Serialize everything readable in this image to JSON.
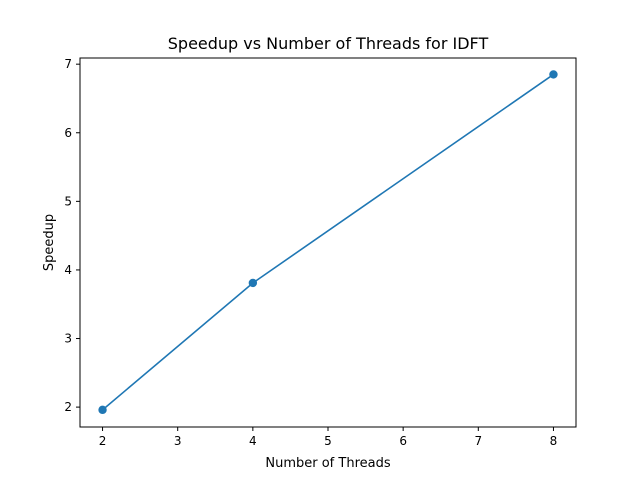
{
  "chart_data": {
    "type": "line",
    "title": "Speedup vs Number of Threads for IDFT",
    "xlabel": "Number of Threads",
    "ylabel": "Speedup",
    "xlim": [
      1.7,
      8.3
    ],
    "ylim": [
      1.71,
      7.09
    ],
    "xticks": [
      2,
      3,
      4,
      5,
      6,
      7,
      8
    ],
    "yticks": [
      2,
      3,
      4,
      5,
      6,
      7
    ],
    "grid": false,
    "series": [
      {
        "x": [
          2,
          4,
          8
        ],
        "y": [
          1.96,
          3.81,
          6.85
        ],
        "color": "#1f77b4",
        "marker": "circle"
      }
    ]
  }
}
